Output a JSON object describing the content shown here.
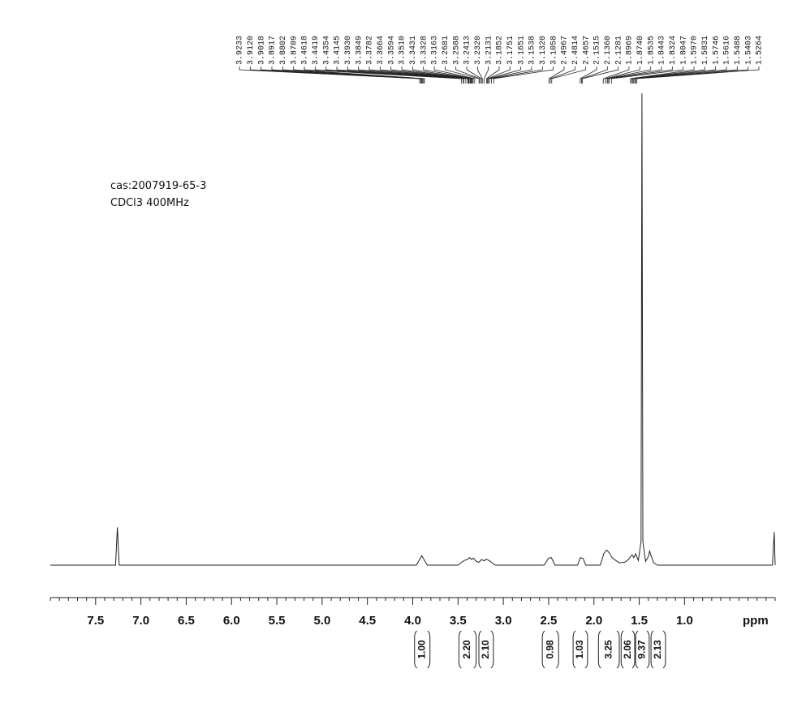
{
  "chart_data": {
    "type": "nmr",
    "annotations": [
      "cas:2007919-65-3",
      "CDCl3   400MHz"
    ],
    "x_label": "ppm",
    "xlim": [
      8.0,
      0.0
    ],
    "ylim": [
      0,
      100
    ],
    "xticks": [
      {
        "value": 7.5,
        "label": "7.5"
      },
      {
        "value": 7,
        "label": "7.0"
      },
      {
        "value": 6.5,
        "label": "6.5"
      },
      {
        "value": 6,
        "label": "6.0"
      },
      {
        "value": 5.5,
        "label": "5.5"
      },
      {
        "value": 5,
        "label": "5.0"
      },
      {
        "value": 4.5,
        "label": "4.5"
      },
      {
        "value": 4,
        "label": "4.0"
      },
      {
        "value": 3.5,
        "label": "3.5"
      },
      {
        "value": 3,
        "label": "3.0"
      },
      {
        "value": 2.5,
        "label": "2.5"
      },
      {
        "value": 2,
        "label": "2.0"
      },
      {
        "value": 1.5,
        "label": "1.5"
      },
      {
        "value": 1,
        "label": "1.0"
      }
    ],
    "xminorticks": [
      8.0,
      7.9,
      7.8,
      7.7,
      7.6,
      7.4,
      7.3,
      7.2,
      7.1,
      6.9,
      6.8,
      6.7,
      6.6,
      6.4,
      6.3,
      6.2,
      6.1,
      5.9,
      5.8,
      5.7,
      5.6,
      5.4,
      5.3,
      5.2,
      5.1,
      4.9,
      4.8,
      4.7,
      4.6,
      4.4,
      4.3,
      4.2,
      4.1,
      3.9,
      3.8,
      3.7,
      3.6,
      3.4,
      3.3,
      3.2,
      3.1,
      2.9,
      2.8,
      2.7,
      2.6,
      2.4,
      2.3,
      2.2,
      2.1,
      1.9,
      1.8,
      1.7,
      1.6,
      1.4,
      1.3,
      1.2,
      1.1,
      0.9,
      0.8,
      0.7,
      0.6,
      0.5,
      0.4,
      0.3,
      0.2,
      0.1,
      0
    ],
    "peaks": [
      3.9233,
      {
        "value": 3.912,
        "label": "3.9120"
      },
      3.9018,
      3.8917,
      3.8802,
      3.8709,
      3.4618,
      3.4419,
      3.4354,
      3.4145,
      {
        "value": 3.393,
        "label": "3.3930"
      },
      3.3849,
      3.3782,
      3.3664,
      3.3594,
      {
        "value": 3.351,
        "label": "3.3510"
      },
      3.3431,
      3.3328,
      3.3163,
      3.2681,
      3.2588,
      3.2413,
      {
        "value": 3.232,
        "label": "3.2320"
      },
      3.2131,
      3.1852,
      3.1751,
      3.1651,
      3.1538,
      {
        "value": 3.132,
        "label": "3.1320"
      },
      3.1058,
      2.4967,
      2.4814,
      2.4657,
      2.1515,
      {
        "value": 2.136,
        "label": "2.1360"
      },
      2.1281,
      1.8969,
      {
        "value": 1.874,
        "label": "1.8740"
      },
      1.8535,
      1.8443,
      1.8324,
      1.8047,
      {
        "value": 1.597,
        "label": "1.5970"
      },
      1.5831,
      1.5746,
      1.5616,
      1.5488,
      1.5403,
      1.5264
    ],
    "integrals": [
      {
        "from": 3.98,
        "to": 3.81,
        "value": 1,
        "label": "1.00"
      },
      {
        "from": 3.49,
        "to": 3.3,
        "value": 2.2,
        "label": "2.20"
      },
      {
        "from": 3.27,
        "to": 3.11,
        "value": 2.1,
        "label": "2.10"
      },
      {
        "from": 2.57,
        "to": 2.39,
        "value": 0.98,
        "label": "0.98"
      },
      {
        "from": 2.23,
        "to": 2.07,
        "value": 1.03,
        "label": "1.03"
      },
      {
        "from": 1.95,
        "to": 1.72,
        "value": 3.25,
        "label": "3.25"
      },
      {
        "from": 1.7,
        "to": 1.55,
        "value": 2.06,
        "label": "2.06"
      },
      {
        "from": 1.54,
        "to": 1.39,
        "value": 9.37,
        "label": "9.37"
      },
      {
        "from": 1.37,
        "to": 1.21,
        "value": 2.13,
        "label": "2.13"
      }
    ],
    "color": "#222222",
    "x": [
      8.0,
      7.28,
      7.26,
      7.24,
      3.96,
      3.93,
      3.9,
      3.87,
      3.84,
      3.5,
      3.46,
      3.43,
      3.4,
      3.37,
      3.35,
      3.33,
      3.3,
      3.27,
      3.24,
      3.21,
      3.19,
      3.16,
      3.13,
      3.09,
      2.55,
      2.5,
      2.47,
      2.43,
      2.18,
      2.15,
      2.12,
      2.09,
      1.93,
      1.89,
      1.86,
      1.83,
      1.8,
      1.76,
      1.72,
      1.66,
      1.62,
      1.58,
      1.56,
      1.54,
      1.51,
      1.48,
      1.47,
      1.46,
      1.43,
      1.4,
      1.385,
      1.37,
      1.34,
      1.3,
      0.03,
      0.01,
      0.0
    ],
    "y": [
      0,
      0,
      8,
      0,
      0,
      1,
      2,
      1,
      0,
      0,
      0.6,
      1,
      1.2,
      1.6,
      1.2,
      1.5,
      0.8,
      0.6,
      1.2,
      0.9,
      1.3,
      1,
      0.6,
      0,
      0,
      1.5,
      1.6,
      0,
      0,
      1.6,
      1.4,
      0,
      0,
      2.5,
      3.2,
      2.6,
      1.6,
      1.0,
      0.5,
      0.6,
      1.2,
      2.2,
      1.6,
      2.4,
      1.0,
      5,
      100,
      5,
      0.8,
      1.8,
      3,
      2,
      0.5,
      0,
      0,
      7,
      0
    ]
  }
}
